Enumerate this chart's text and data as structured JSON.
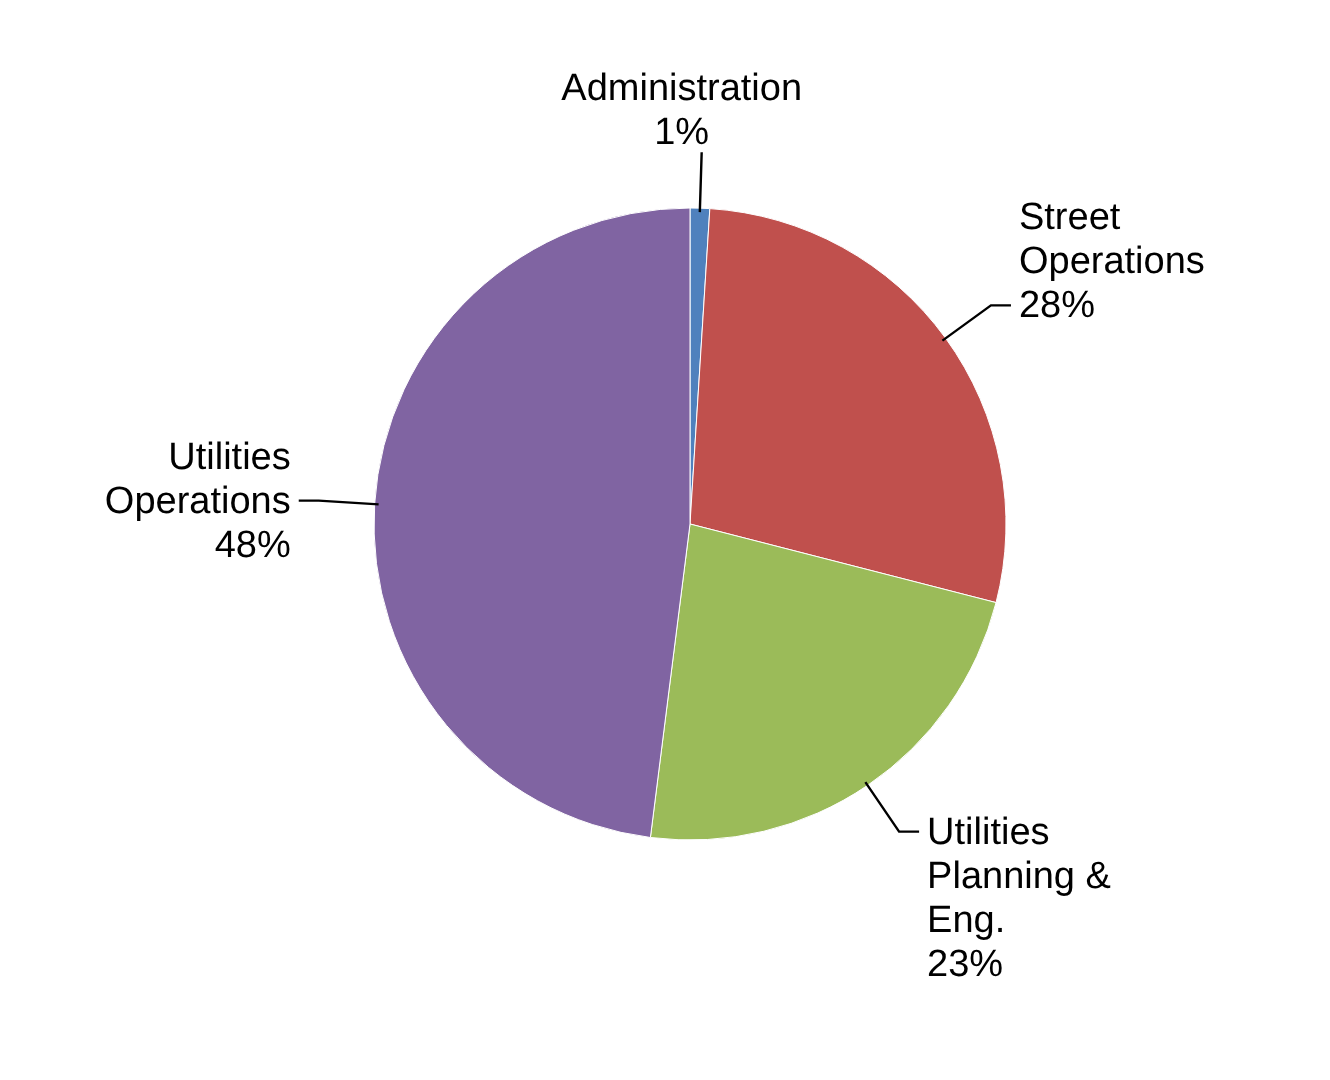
{
  "chart_data": {
    "type": "pie",
    "categories": [
      "Administration",
      "Street Operations",
      "Utilities Planning & Eng.",
      "Utilities Operations"
    ],
    "values": [
      1,
      28,
      23,
      48
    ],
    "colors": [
      "#4f81bd",
      "#c0504d",
      "#9bbb59",
      "#8064a2"
    ],
    "value_labels": [
      "1%",
      "28%",
      "23%",
      "48%"
    ]
  }
}
